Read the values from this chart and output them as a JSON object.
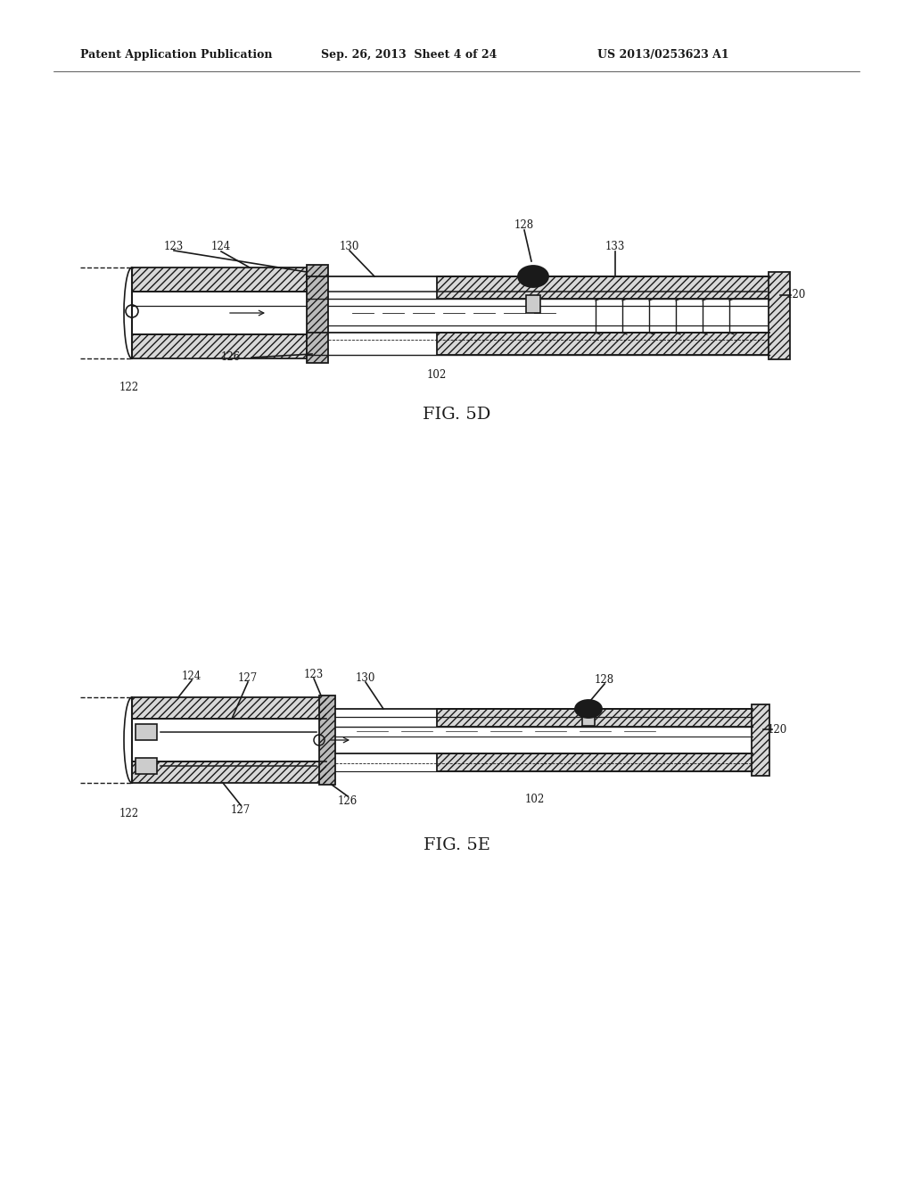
{
  "bg_color": "#ffffff",
  "text_color": "#1a1a1a",
  "header_left": "Patent Application Publication",
  "header_center": "Sep. 26, 2013  Sheet 4 of 24",
  "header_right": "US 2013/0253623 A1",
  "fig5d_label": "FIG. 5D",
  "fig5e_label": "FIG. 5E",
  "line_color": "#1a1a1a",
  "line_width": 1.2,
  "hatch_pattern": "////",
  "hatch_color": "#444444"
}
